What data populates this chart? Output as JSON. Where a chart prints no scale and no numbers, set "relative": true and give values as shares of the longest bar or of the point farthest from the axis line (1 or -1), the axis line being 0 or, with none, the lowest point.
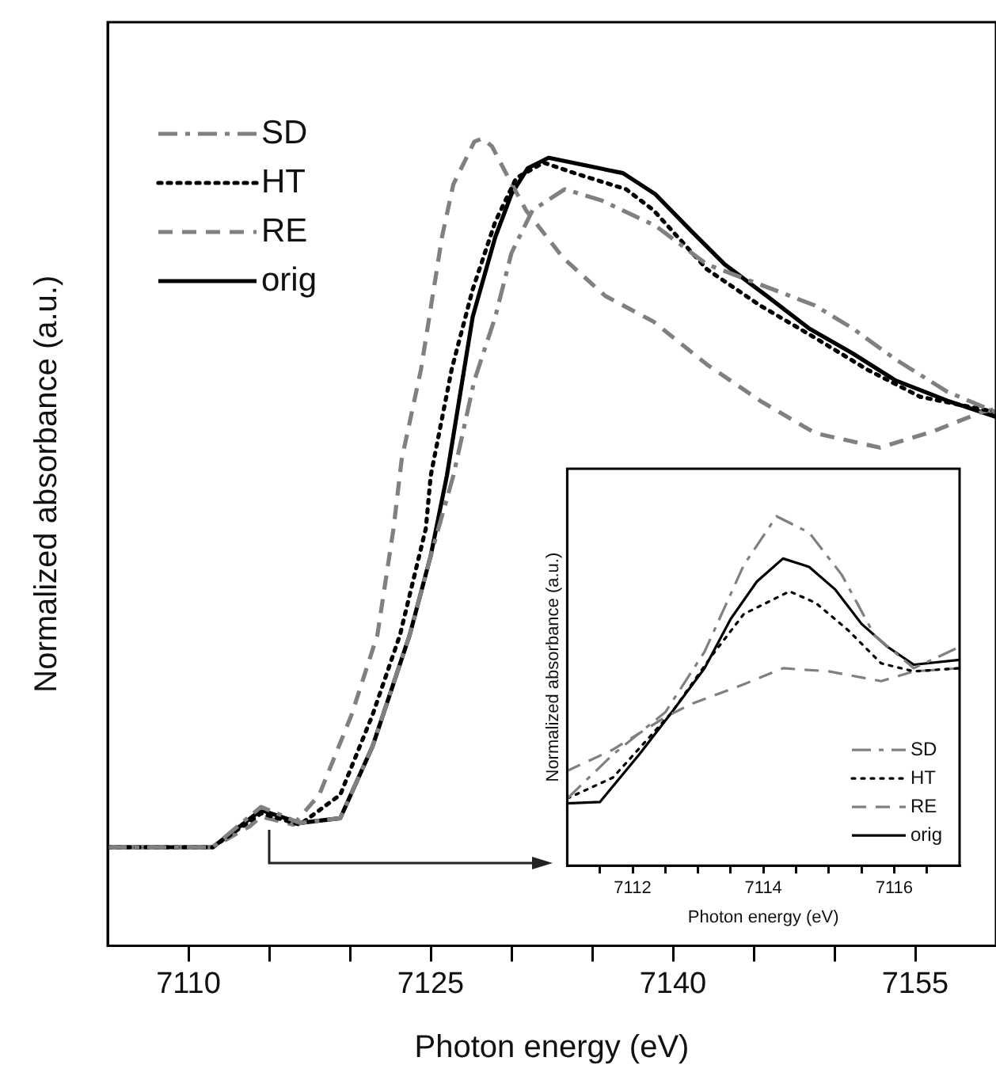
{
  "chart_data": [
    {
      "type": "line",
      "xlabel": "Photon energy (eV)",
      "ylabel": "Normalized absorbance (a.u.)",
      "relative": true,
      "xlim": [
        7105,
        7160
      ],
      "xticks": [
        7110,
        {
          "value": 7115,
          "label": null
        },
        {
          "value": 7120,
          "label": null
        },
        7125,
        {
          "value": 7130,
          "label": null
        },
        {
          "value": 7135,
          "label": null
        },
        7140,
        {
          "value": 7145,
          "label": null
        },
        {
          "value": 7150,
          "label": null
        },
        7155
      ],
      "grid": false,
      "legend": "top left",
      "marker": "none",
      "series": [
        {
          "name": "SD",
          "color": "#808080",
          "line_style": "dashdot",
          "x": [
            7105,
            7111.5,
            7114.5,
            7116.9,
            7119.4,
            7121.4,
            7123.7,
            7125,
            7126.4,
            7127.7,
            7129,
            7130,
            7131.3,
            7133.3,
            7135.6,
            7138.9,
            7142.1,
            7145.4,
            7148.8,
            7151.1,
            7153.8,
            7157,
            7160
          ],
          "values": [
            0.122,
            0.122,
            0.172,
            0.152,
            0.158,
            0.247,
            0.385,
            0.483,
            0.582,
            0.7,
            0.779,
            0.858,
            0.911,
            0.937,
            0.923,
            0.892,
            0.844,
            0.819,
            0.793,
            0.765,
            0.726,
            0.686,
            0.661
          ]
        },
        {
          "name": "HT",
          "color": "#000000",
          "line_style": "dotted",
          "x": [
            7105,
            7111.5,
            7114.5,
            7116.9,
            7119.4,
            7121.4,
            7123.1,
            7124.7,
            7125,
            7126.3,
            7127.6,
            7129,
            7130.3,
            7132,
            7133.9,
            7137.1,
            7138.8,
            7142.1,
            7145.4,
            7148.8,
            7152,
            7155.3,
            7160
          ],
          "values": [
            0.122,
            0.122,
            0.164,
            0.15,
            0.187,
            0.286,
            0.385,
            0.517,
            0.582,
            0.714,
            0.813,
            0.897,
            0.951,
            0.97,
            0.957,
            0.937,
            0.911,
            0.838,
            0.793,
            0.753,
            0.714,
            0.68,
            0.661
          ]
        },
        {
          "name": "RE",
          "color": "#808080",
          "line_style": "dashed",
          "x": [
            7105,
            7111.5,
            7113.8,
            7114.5,
            7116.5,
            7118.1,
            7120.1,
            7121.7,
            7122.7,
            7123.2,
            7124.4,
            7125.7,
            7126.4,
            7127.7,
            7128.2,
            7128.8,
            7129.5,
            7130.9,
            7133.2,
            7135.8,
            7138.8,
            7142.1,
            7145.4,
            7148.8,
            7152.8,
            7156.1,
            7159.1,
            7160
          ],
          "values": [
            0.122,
            0.122,
            0.148,
            0.16,
            0.15,
            0.187,
            0.286,
            0.385,
            0.517,
            0.602,
            0.714,
            0.878,
            0.943,
            0.996,
            1,
            0.99,
            0.963,
            0.911,
            0.852,
            0.805,
            0.773,
            0.72,
            0.675,
            0.635,
            0.617,
            0.637,
            0.661,
            0.665
          ]
        },
        {
          "name": "orig",
          "color": "#000000",
          "line_style": "solid",
          "x": [
            7105,
            7111.5,
            7114.5,
            7116.9,
            7119.4,
            7121.4,
            7123.7,
            7125,
            7126,
            7127.6,
            7129,
            7130,
            7131,
            7132.3,
            7136.9,
            7138.9,
            7141.2,
            7143.2,
            7145.8,
            7148.4,
            7151.1,
            7153.8,
            7157,
            7160
          ],
          "values": [
            0.122,
            0.122,
            0.168,
            0.152,
            0.158,
            0.247,
            0.385,
            0.483,
            0.582,
            0.779,
            0.878,
            0.931,
            0.963,
            0.976,
            0.957,
            0.931,
            0.884,
            0.844,
            0.805,
            0.765,
            0.734,
            0.7,
            0.675,
            0.655
          ]
        }
      ]
    },
    {
      "type": "line",
      "xlabel": "Photon energy (eV)",
      "ylabel": "Normalized absorbance (a.u.)",
      "relative": true,
      "xlim": [
        7111,
        7117
      ],
      "xticks": [
        {
          "value": 7111.5,
          "label": null
        },
        7112,
        {
          "value": 7112.5,
          "label": null
        },
        {
          "value": 7113,
          "label": null
        },
        {
          "value": 7113.5,
          "label": null
        },
        7114,
        {
          "value": 7114.5,
          "label": null
        },
        {
          "value": 7115,
          "label": null
        },
        {
          "value": 7115.5,
          "label": null
        },
        7116,
        {
          "value": 7116.5,
          "label": null
        }
      ],
      "grid": false,
      "legend": "bottom right",
      "marker": "none",
      "series": [
        {
          "name": "SD",
          "color": "#808080",
          "line_style": "dashdot",
          "x": [
            7111,
            7111.7,
            7112.5,
            7113.1,
            7113.7,
            7114.2,
            7114.7,
            7115.2,
            7115.7,
            7116.3,
            7117
          ],
          "values": [
            0.192,
            0.318,
            0.439,
            0.612,
            0.86,
            1,
            0.953,
            0.832,
            0.659,
            0.565,
            0.626
          ]
        },
        {
          "name": "HT",
          "color": "#000000",
          "line_style": "dotted",
          "x": [
            7111,
            7111.7,
            7112.6,
            7113.2,
            7113.7,
            7114.4,
            7114.8,
            7115.3,
            7115.8,
            7116.3,
            7117
          ],
          "values": [
            0.192,
            0.252,
            0.439,
            0.598,
            0.72,
            0.785,
            0.752,
            0.673,
            0.579,
            0.556,
            0.565
          ]
        },
        {
          "name": "RE",
          "color": "#808080",
          "line_style": "dashed",
          "x": [
            7111,
            7111.7,
            7112.5,
            7112.9,
            7113.7,
            7114.3,
            7115,
            7115.8,
            7116.3,
            7117
          ],
          "values": [
            0.271,
            0.332,
            0.425,
            0.463,
            0.519,
            0.565,
            0.556,
            0.528,
            0.556,
            0.565
          ]
        },
        {
          "name": "orig",
          "color": "#000000",
          "line_style": "solid",
          "x": [
            7111,
            7111.5,
            7112.1,
            7112.6,
            7113.1,
            7113.5,
            7113.9,
            7114.3,
            7114.7,
            7115.1,
            7115.5,
            7115.9,
            7116.3,
            7117
          ],
          "values": [
            0.178,
            0.182,
            0.318,
            0.439,
            0.565,
            0.706,
            0.813,
            0.879,
            0.855,
            0.79,
            0.692,
            0.626,
            0.575,
            0.589
          ]
        }
      ]
    }
  ]
}
